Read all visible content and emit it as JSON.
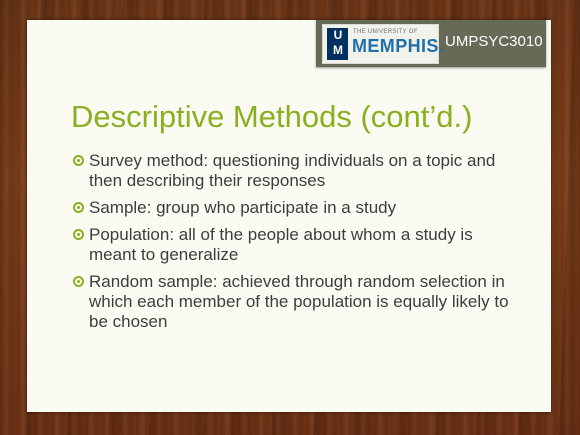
{
  "header": {
    "logo_letters": [
      "U",
      "M"
    ],
    "university_small": "THE UNIVERSITY OF",
    "university_name": "MEMPHIS.",
    "course_code": "UMPSYC3010"
  },
  "slide": {
    "title": "Descriptive Methods (cont’d.)",
    "bullets": [
      "Survey method: questioning individuals on a topic and then describing their responses",
      "Sample: group who participate in a study",
      "Population: all of the people about whom a study is meant to generalize",
      "Random sample: achieved through random selection in which each member of the population is equally likely to be chosen"
    ]
  },
  "colors": {
    "title": "#88b020",
    "bullet_icon": "#88b020",
    "banner": "#676a54",
    "logo_navy": "#00305f",
    "logo_blue": "#1f6fa8",
    "body_text": "#3d3d3d"
  },
  "icons": {
    "bullet": "ring-bullet-icon"
  }
}
